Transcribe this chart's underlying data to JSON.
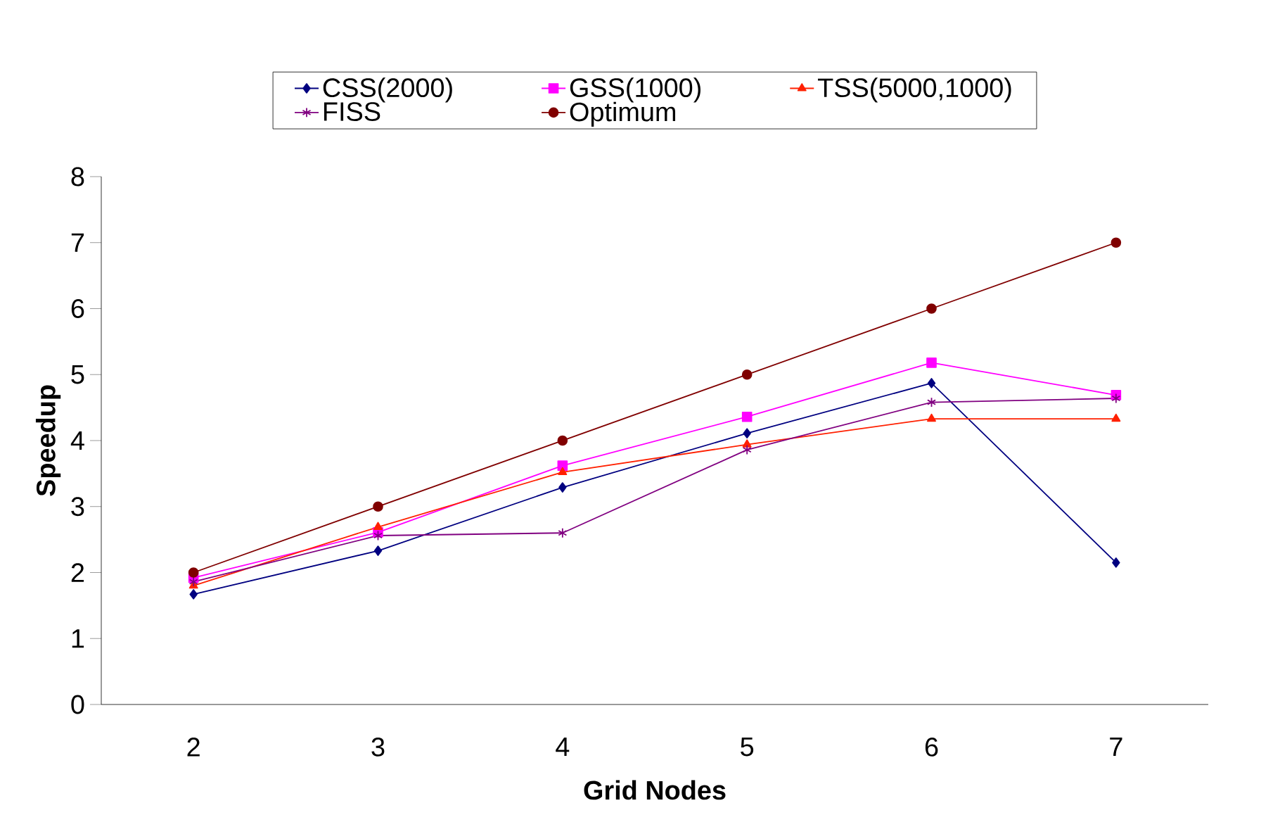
{
  "chart_data": {
    "type": "line",
    "xlabel": "Grid Nodes",
    "ylabel": "Speedup",
    "categories": [
      "2",
      "3",
      "4",
      "5",
      "6",
      "7"
    ],
    "ylim": [
      0,
      8
    ],
    "yticks": [
      0,
      1,
      2,
      3,
      4,
      5,
      6,
      7,
      8
    ],
    "grid": false,
    "legend": "top",
    "line_style": "solid",
    "series": [
      {
        "name": "CSS(2000)",
        "color": "#000080",
        "marker": "diamond",
        "values": [
          1.67,
          2.33,
          3.29,
          4.11,
          4.87,
          2.15
        ]
      },
      {
        "name": "GSS(1000)",
        "color": "#ff00ff",
        "marker": "square",
        "values": [
          1.92,
          2.61,
          3.62,
          4.36,
          5.18,
          4.69
        ]
      },
      {
        "name": "TSS(5000,1000)",
        "color": "#ff2000",
        "marker": "triangle",
        "values": [
          1.8,
          2.69,
          3.52,
          3.94,
          4.33,
          4.33
        ]
      },
      {
        "name": "FISS",
        "color": "#800080",
        "marker": "cross",
        "values": [
          1.86,
          2.56,
          2.6,
          3.86,
          4.58,
          4.64
        ]
      },
      {
        "name": "Optimum",
        "color": "#800000",
        "marker": "circle",
        "values": [
          2,
          3,
          4,
          5,
          6,
          7
        ]
      }
    ]
  }
}
